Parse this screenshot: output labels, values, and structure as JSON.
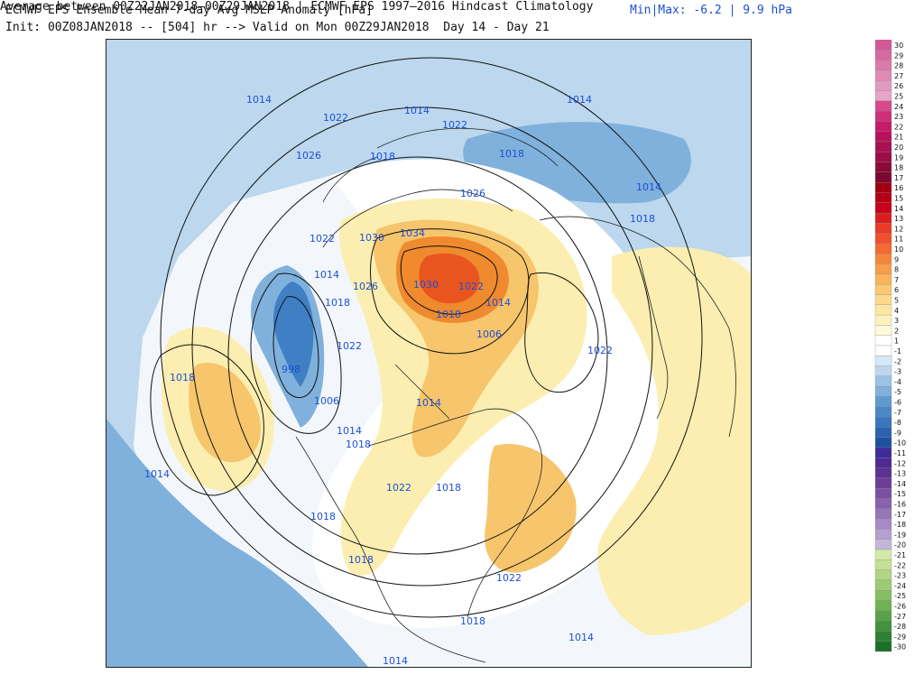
{
  "header": {
    "title": "ECMWF EPS Ensemble Mean 7-day Avg MSLP Anomaly [hPa]",
    "init": "Init: 00Z08JAN2018 -- [504] hr --> Valid on Mon 00Z29JAN2018  Day 14 - Day 21",
    "minmax": "Min|Max: -6.2 | 9.9 hPa"
  },
  "footer": "Average between 00Z22JAN2018–00Z29JAN2018 | ECMWF EPS 1997–2016 Hindcast Climatology",
  "map": {
    "contour_labels": [
      "1014",
      "1014",
      "1022",
      "1022",
      "1026",
      "1018",
      "1018",
      "1014",
      "1026",
      "1014",
      "1018",
      "1022",
      "1030",
      "1034",
      "1014",
      "1026",
      "1030",
      "1022",
      "1018",
      "1014",
      "1018",
      "1006",
      "1022",
      "998",
      "1018",
      "1022",
      "1006",
      "1014",
      "1014",
      "1018",
      "1014",
      "1022",
      "1018",
      "1018",
      "1018",
      "1022",
      "1018",
      "1014",
      "1014"
    ],
    "colors": {
      "strong_negative": "#3f7fc4",
      "moderate_negative": "#7fb1dc",
      "weak_negative": "#bcd7ee",
      "weak_positive": "#fbeeb0",
      "moderate_positive": "#f6c56c",
      "strong_positive": "#ef8a2e",
      "peak_positive": "#e8551e",
      "contour": "#111111",
      "coastline": "#222222"
    }
  },
  "colorbar": {
    "ticks": [
      "30",
      "29",
      "28",
      "27",
      "26",
      "25",
      "24",
      "23",
      "22",
      "21",
      "20",
      "19",
      "18",
      "17",
      "16",
      "15",
      "14",
      "13",
      "12",
      "11",
      "10",
      "9",
      "8",
      "7",
      "6",
      "5",
      "4",
      "3",
      "2",
      "1",
      "-1",
      "-2",
      "-3",
      "-4",
      "-5",
      "-6",
      "-7",
      "-8",
      "-9",
      "-10",
      "-11",
      "-12",
      "-13",
      "-14",
      "-15",
      "-16",
      "-17",
      "-18",
      "-19",
      "-20",
      "-21",
      "-22",
      "-23",
      "-24",
      "-25",
      "-26",
      "-27",
      "-28",
      "-29",
      "-30"
    ],
    "colors": [
      "#d15a95",
      "#d46a9f",
      "#d97aaa",
      "#dd8ab4",
      "#e29abf",
      "#e5a6c7",
      "#d9488a",
      "#cc3078",
      "#c41c68",
      "#b8125c",
      "#a8104f",
      "#9c0d45",
      "#8c0a3a",
      "#7d0830",
      "#a00010",
      "#b50015",
      "#c8001a",
      "#d91e1e",
      "#e83a28",
      "#f05030",
      "#f46a34",
      "#f7843c",
      "#f89d4a",
      "#f9b45c",
      "#fac872",
      "#fbd98a",
      "#fce7a2",
      "#fdf2bf",
      "#fffad9",
      "#ffffff",
      "#ffffff",
      "#d6e8f5",
      "#bcd7ee",
      "#9cc3e5",
      "#7fb1dc",
      "#5f9bd1",
      "#4a88c7",
      "#3876bd",
      "#2a62b0",
      "#1f4fa1",
      "#3c2d96",
      "#4e2a92",
      "#5e3192",
      "#6b3e98",
      "#7a50a2",
      "#8862ad",
      "#9776b8",
      "#a58bc4",
      "#b4a0cf",
      "#c3b6db",
      "#d4e9a8",
      "#c4e096",
      "#b1d683",
      "#9ccb72",
      "#86bf62",
      "#6fb254",
      "#58a348",
      "#42933c",
      "#2d8232",
      "#1a7229"
    ]
  }
}
